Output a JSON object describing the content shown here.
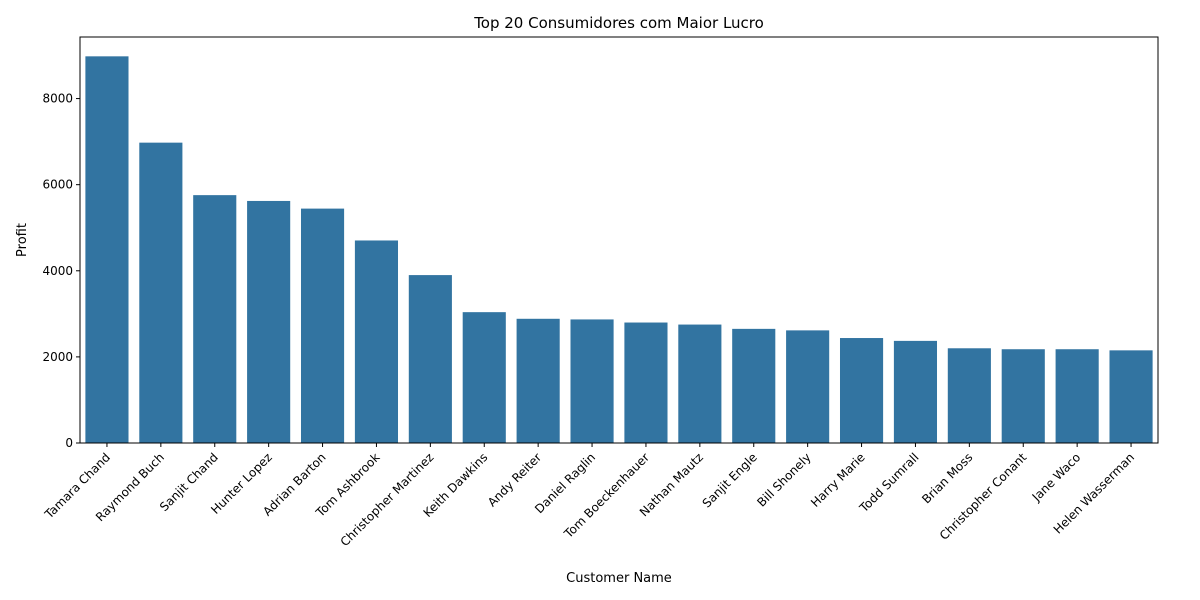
{
  "chart_data": {
    "type": "bar",
    "title": "Top 20 Consumidores com Maior Lucro",
    "xlabel": "Customer Name",
    "ylabel": "Profit",
    "categories": [
      "Tamara Chand",
      "Raymond Buch",
      "Sanjit Chand",
      "Hunter Lopez",
      "Adrian Barton",
      "Tom Ashbrook",
      "Christopher Martinez",
      "Keith Dawkins",
      "Andy Reiter",
      "Daniel Raglin",
      "Tom Boeckenhauer",
      "Nathan Mautz",
      "Sanjit Engle",
      "Bill Shonely",
      "Harry Marie",
      "Todd Sumrall",
      "Brian Moss",
      "Christopher Conant",
      "Jane Waco",
      "Helen Wasserman"
    ],
    "values": [
      8981,
      6976,
      5757,
      5622,
      5444,
      4704,
      3900,
      3039,
      2885,
      2870,
      2798,
      2751,
      2651,
      2616,
      2438,
      2372,
      2200,
      2178,
      2178,
      2152
    ],
    "ylim": [
      0,
      9430
    ],
    "yticks": [
      0,
      2000,
      4000,
      6000,
      8000
    ],
    "bar_color": "#3274a1",
    "grid": false
  }
}
